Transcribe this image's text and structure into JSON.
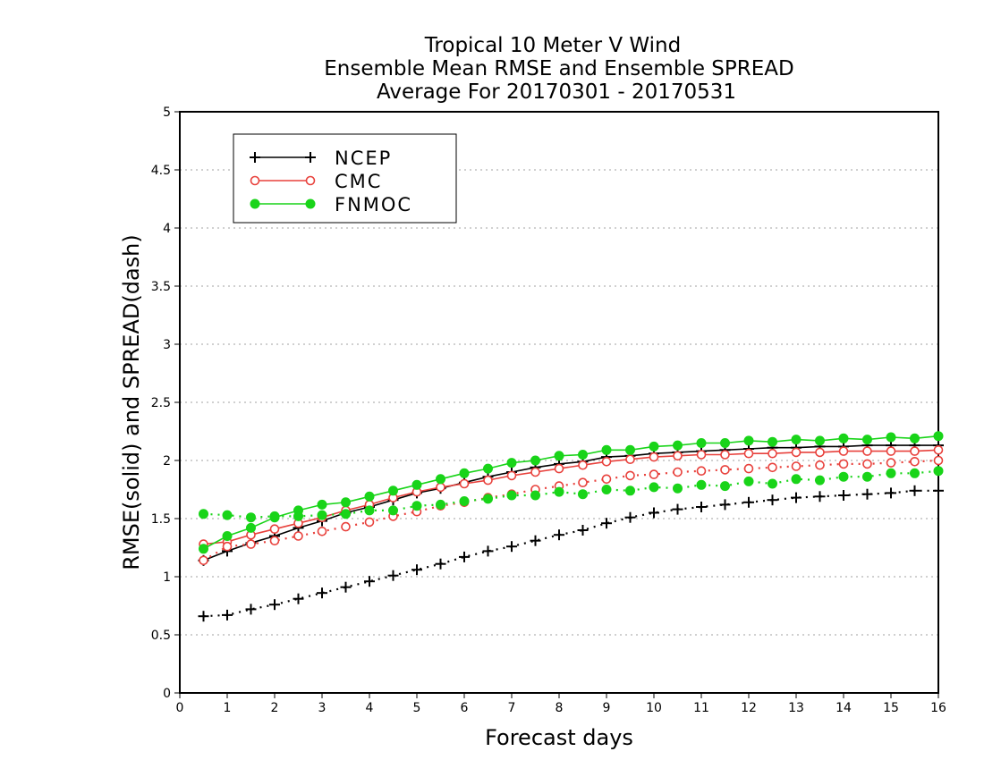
{
  "chart_data": {
    "type": "line",
    "title": [
      "Tropical 10 Meter V Wind",
      "Ensemble Mean RMSE and Ensemble SPREAD",
      "Average For 20170301 - 20170531"
    ],
    "xlabel": "Forecast days",
    "ylabel": "RMSE(solid) and SPREAD(dash)",
    "xlim": [
      0,
      16
    ],
    "ylim": [
      0,
      5
    ],
    "x_ticks": [
      0,
      1,
      2,
      3,
      4,
      5,
      6,
      7,
      8,
      9,
      10,
      11,
      12,
      13,
      14,
      15,
      16
    ],
    "y_ticks": [
      "0",
      "0.5",
      "1",
      "1.5",
      "2",
      "2.5",
      "3",
      "3.5",
      "4",
      "4.5",
      "5"
    ],
    "grid": "horizontal dotted",
    "legend_position": "top-left",
    "x": [
      0.5,
      1,
      1.5,
      2,
      2.5,
      3,
      3.5,
      4,
      4.5,
      5,
      5.5,
      6,
      6.5,
      7,
      7.5,
      8,
      8.5,
      9,
      9.5,
      10,
      10.5,
      11,
      11.5,
      12,
      12.5,
      13,
      13.5,
      14,
      14.5,
      15,
      15.5,
      16
    ],
    "series": [
      {
        "name": "NCEP",
        "color": "#000000",
        "marker": "plus",
        "rmse": [
          1.14,
          1.22,
          1.29,
          1.35,
          1.42,
          1.48,
          1.55,
          1.6,
          1.66,
          1.72,
          1.76,
          1.81,
          1.86,
          1.9,
          1.94,
          1.97,
          1.99,
          2.03,
          2.04,
          2.06,
          2.07,
          2.08,
          2.09,
          2.1,
          2.11,
          2.11,
          2.12,
          2.12,
          2.13,
          2.13,
          2.13,
          2.13
        ],
        "spread": [
          0.66,
          0.67,
          0.72,
          0.76,
          0.81,
          0.86,
          0.91,
          0.96,
          1.01,
          1.06,
          1.11,
          1.17,
          1.22,
          1.26,
          1.31,
          1.36,
          1.4,
          1.46,
          1.51,
          1.55,
          1.58,
          1.6,
          1.62,
          1.64,
          1.66,
          1.68,
          1.69,
          1.7,
          1.71,
          1.72,
          1.74,
          1.74
        ]
      },
      {
        "name": "CMC",
        "color": "#e8413c",
        "marker": "open-circle",
        "rmse": [
          1.28,
          1.3,
          1.36,
          1.41,
          1.46,
          1.51,
          1.57,
          1.62,
          1.68,
          1.73,
          1.77,
          1.8,
          1.83,
          1.87,
          1.9,
          1.93,
          1.96,
          1.99,
          2.01,
          2.03,
          2.04,
          2.05,
          2.05,
          2.06,
          2.06,
          2.07,
          2.07,
          2.08,
          2.08,
          2.08,
          2.08,
          2.09
        ],
        "spread": [
          1.14,
          1.26,
          1.28,
          1.31,
          1.35,
          1.39,
          1.43,
          1.47,
          1.52,
          1.56,
          1.61,
          1.64,
          1.68,
          1.71,
          1.75,
          1.78,
          1.81,
          1.84,
          1.87,
          1.88,
          1.9,
          1.91,
          1.92,
          1.93,
          1.94,
          1.95,
          1.96,
          1.97,
          1.97,
          1.98,
          1.99,
          2.0
        ]
      },
      {
        "name": "FNMOC",
        "color": "#19d419",
        "marker": "filled-circle",
        "rmse": [
          1.24,
          1.35,
          1.42,
          1.51,
          1.57,
          1.62,
          1.64,
          1.69,
          1.74,
          1.79,
          1.84,
          1.89,
          1.93,
          1.98,
          2.0,
          2.04,
          2.05,
          2.09,
          2.09,
          2.12,
          2.13,
          2.15,
          2.15,
          2.17,
          2.16,
          2.18,
          2.17,
          2.19,
          2.18,
          2.2,
          2.19,
          2.21
        ],
        "spread": [
          1.54,
          1.53,
          1.51,
          1.52,
          1.52,
          1.53,
          1.54,
          1.57,
          1.57,
          1.61,
          1.62,
          1.65,
          1.67,
          1.7,
          1.7,
          1.73,
          1.71,
          1.75,
          1.74,
          1.77,
          1.76,
          1.79,
          1.78,
          1.82,
          1.8,
          1.84,
          1.83,
          1.86,
          1.86,
          1.89,
          1.89,
          1.91
        ]
      }
    ]
  }
}
